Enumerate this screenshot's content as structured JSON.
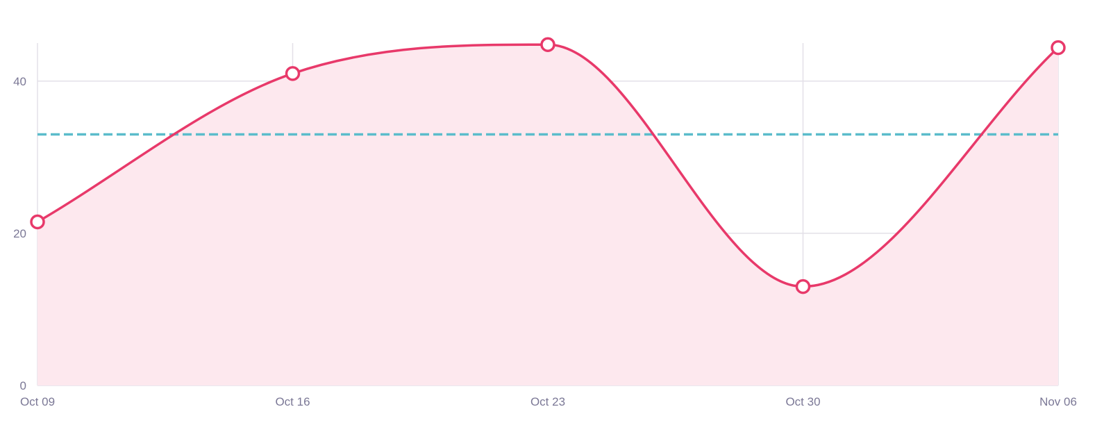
{
  "chart_data": {
    "type": "area",
    "x_labels": [
      "Oct 09",
      "Oct 16",
      "Oct 23",
      "Oct 30",
      "Nov 06"
    ],
    "y_ticks": [
      0,
      20,
      40
    ],
    "ylim": [
      0,
      45
    ],
    "grid": true,
    "series": [
      {
        "values": [
          21.5,
          41,
          44.8,
          13,
          44.4
        ],
        "color": "#e8396a",
        "fill": "#fde8ee",
        "markers": true
      }
    ],
    "reference_line": {
      "value": 33,
      "color": "#5bbccb",
      "style": "dashed"
    },
    "colors": {
      "grid": "#e3e0e8",
      "axis_text": "#7b7896"
    }
  }
}
